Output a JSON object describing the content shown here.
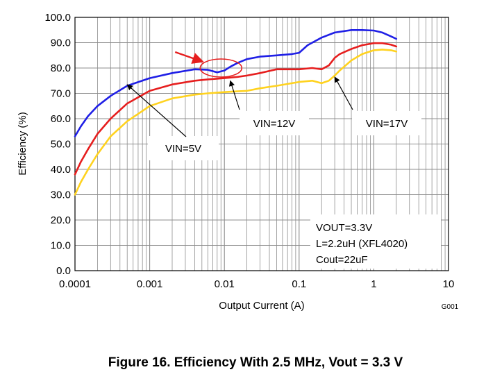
{
  "chart_data": {
    "type": "line",
    "title": "",
    "caption": "Figure 16. Efficiency With 2.5 MHz, Vout = 3.3 V",
    "figure_code": "G001",
    "xlabel": "Output Current (A)",
    "ylabel": "Efficiency (%)",
    "x_scale": "log",
    "xlim": [
      0.0001,
      10
    ],
    "ylim": [
      0,
      100
    ],
    "x_ticks": [
      "0.0001",
      "0.001",
      "0.01",
      "0.1",
      "1",
      "10"
    ],
    "y_ticks": [
      "0.0",
      "10.0",
      "20.0",
      "30.0",
      "40.0",
      "50.0",
      "60.0",
      "70.0",
      "80.0",
      "90.0",
      "100.0"
    ],
    "grid": true,
    "colors": {
      "vin5": "#1f1fe6",
      "vin12": "#e61e1e",
      "vin17": "#ffd21e",
      "highlight": "#e61e1e"
    },
    "series": [
      {
        "name": "VIN=5V",
        "color": "#1f1fe6",
        "x": [
          0.0001,
          0.00012,
          0.00015,
          0.0002,
          0.0003,
          0.0005,
          0.001,
          0.002,
          0.004,
          0.006,
          0.008,
          0.01,
          0.012,
          0.015,
          0.02,
          0.03,
          0.05,
          0.08,
          0.1,
          0.13,
          0.15,
          0.2,
          0.3,
          0.5,
          0.7,
          1,
          1.3,
          1.7,
          2
        ],
        "y": [
          53,
          57,
          61,
          65,
          69,
          73,
          76,
          78,
          79.5,
          79.3,
          78.3,
          79,
          80.5,
          82,
          83.5,
          84.5,
          85,
          85.5,
          86,
          89,
          90,
          92,
          94,
          95,
          95,
          94.8,
          94,
          92.5,
          91.5
        ]
      },
      {
        "name": "VIN=12V",
        "color": "#e61e1e",
        "x": [
          0.0001,
          0.00012,
          0.00015,
          0.0002,
          0.0003,
          0.0005,
          0.001,
          0.002,
          0.004,
          0.006,
          0.01,
          0.015,
          0.02,
          0.03,
          0.05,
          0.08,
          0.1,
          0.15,
          0.2,
          0.25,
          0.3,
          0.35,
          0.5,
          0.7,
          1,
          1.3,
          1.7,
          2
        ],
        "y": [
          38,
          43,
          48,
          54,
          60,
          66,
          71,
          73.5,
          75,
          75.5,
          76,
          76.5,
          77,
          78,
          79.5,
          79.5,
          79.5,
          80,
          79.5,
          81,
          84,
          85.5,
          87.5,
          89,
          89.8,
          89.8,
          89.2,
          88.5
        ]
      },
      {
        "name": "VIN=17V",
        "color": "#ffd21e",
        "x": [
          0.0001,
          0.00012,
          0.00015,
          0.0002,
          0.0003,
          0.0005,
          0.001,
          0.002,
          0.004,
          0.006,
          0.01,
          0.015,
          0.02,
          0.03,
          0.05,
          0.08,
          0.1,
          0.15,
          0.2,
          0.25,
          0.3,
          0.35,
          0.5,
          0.7,
          1,
          1.3,
          1.7,
          2
        ],
        "y": [
          30,
          35,
          40,
          46,
          53,
          59,
          65,
          68,
          69.5,
          70,
          70.5,
          70.8,
          71,
          72,
          73,
          74,
          74.5,
          75,
          74,
          75,
          77,
          79,
          83,
          85.5,
          87,
          87.3,
          87,
          86.5
        ]
      }
    ],
    "annotations": [
      {
        "text": "VIN=5V",
        "x": 0.0005,
        "y": 74
      },
      {
        "text": "VIN=12V",
        "x": 0.012,
        "y": 75.5
      },
      {
        "text": "VIN=17V",
        "x": 0.3,
        "y": 77
      }
    ],
    "notes": [
      "VOUT=3.3V",
      "L=2.2uH (XFL4020)",
      "Cout=22uF"
    ],
    "highlight": {
      "x": 0.009,
      "y": 80
    }
  }
}
